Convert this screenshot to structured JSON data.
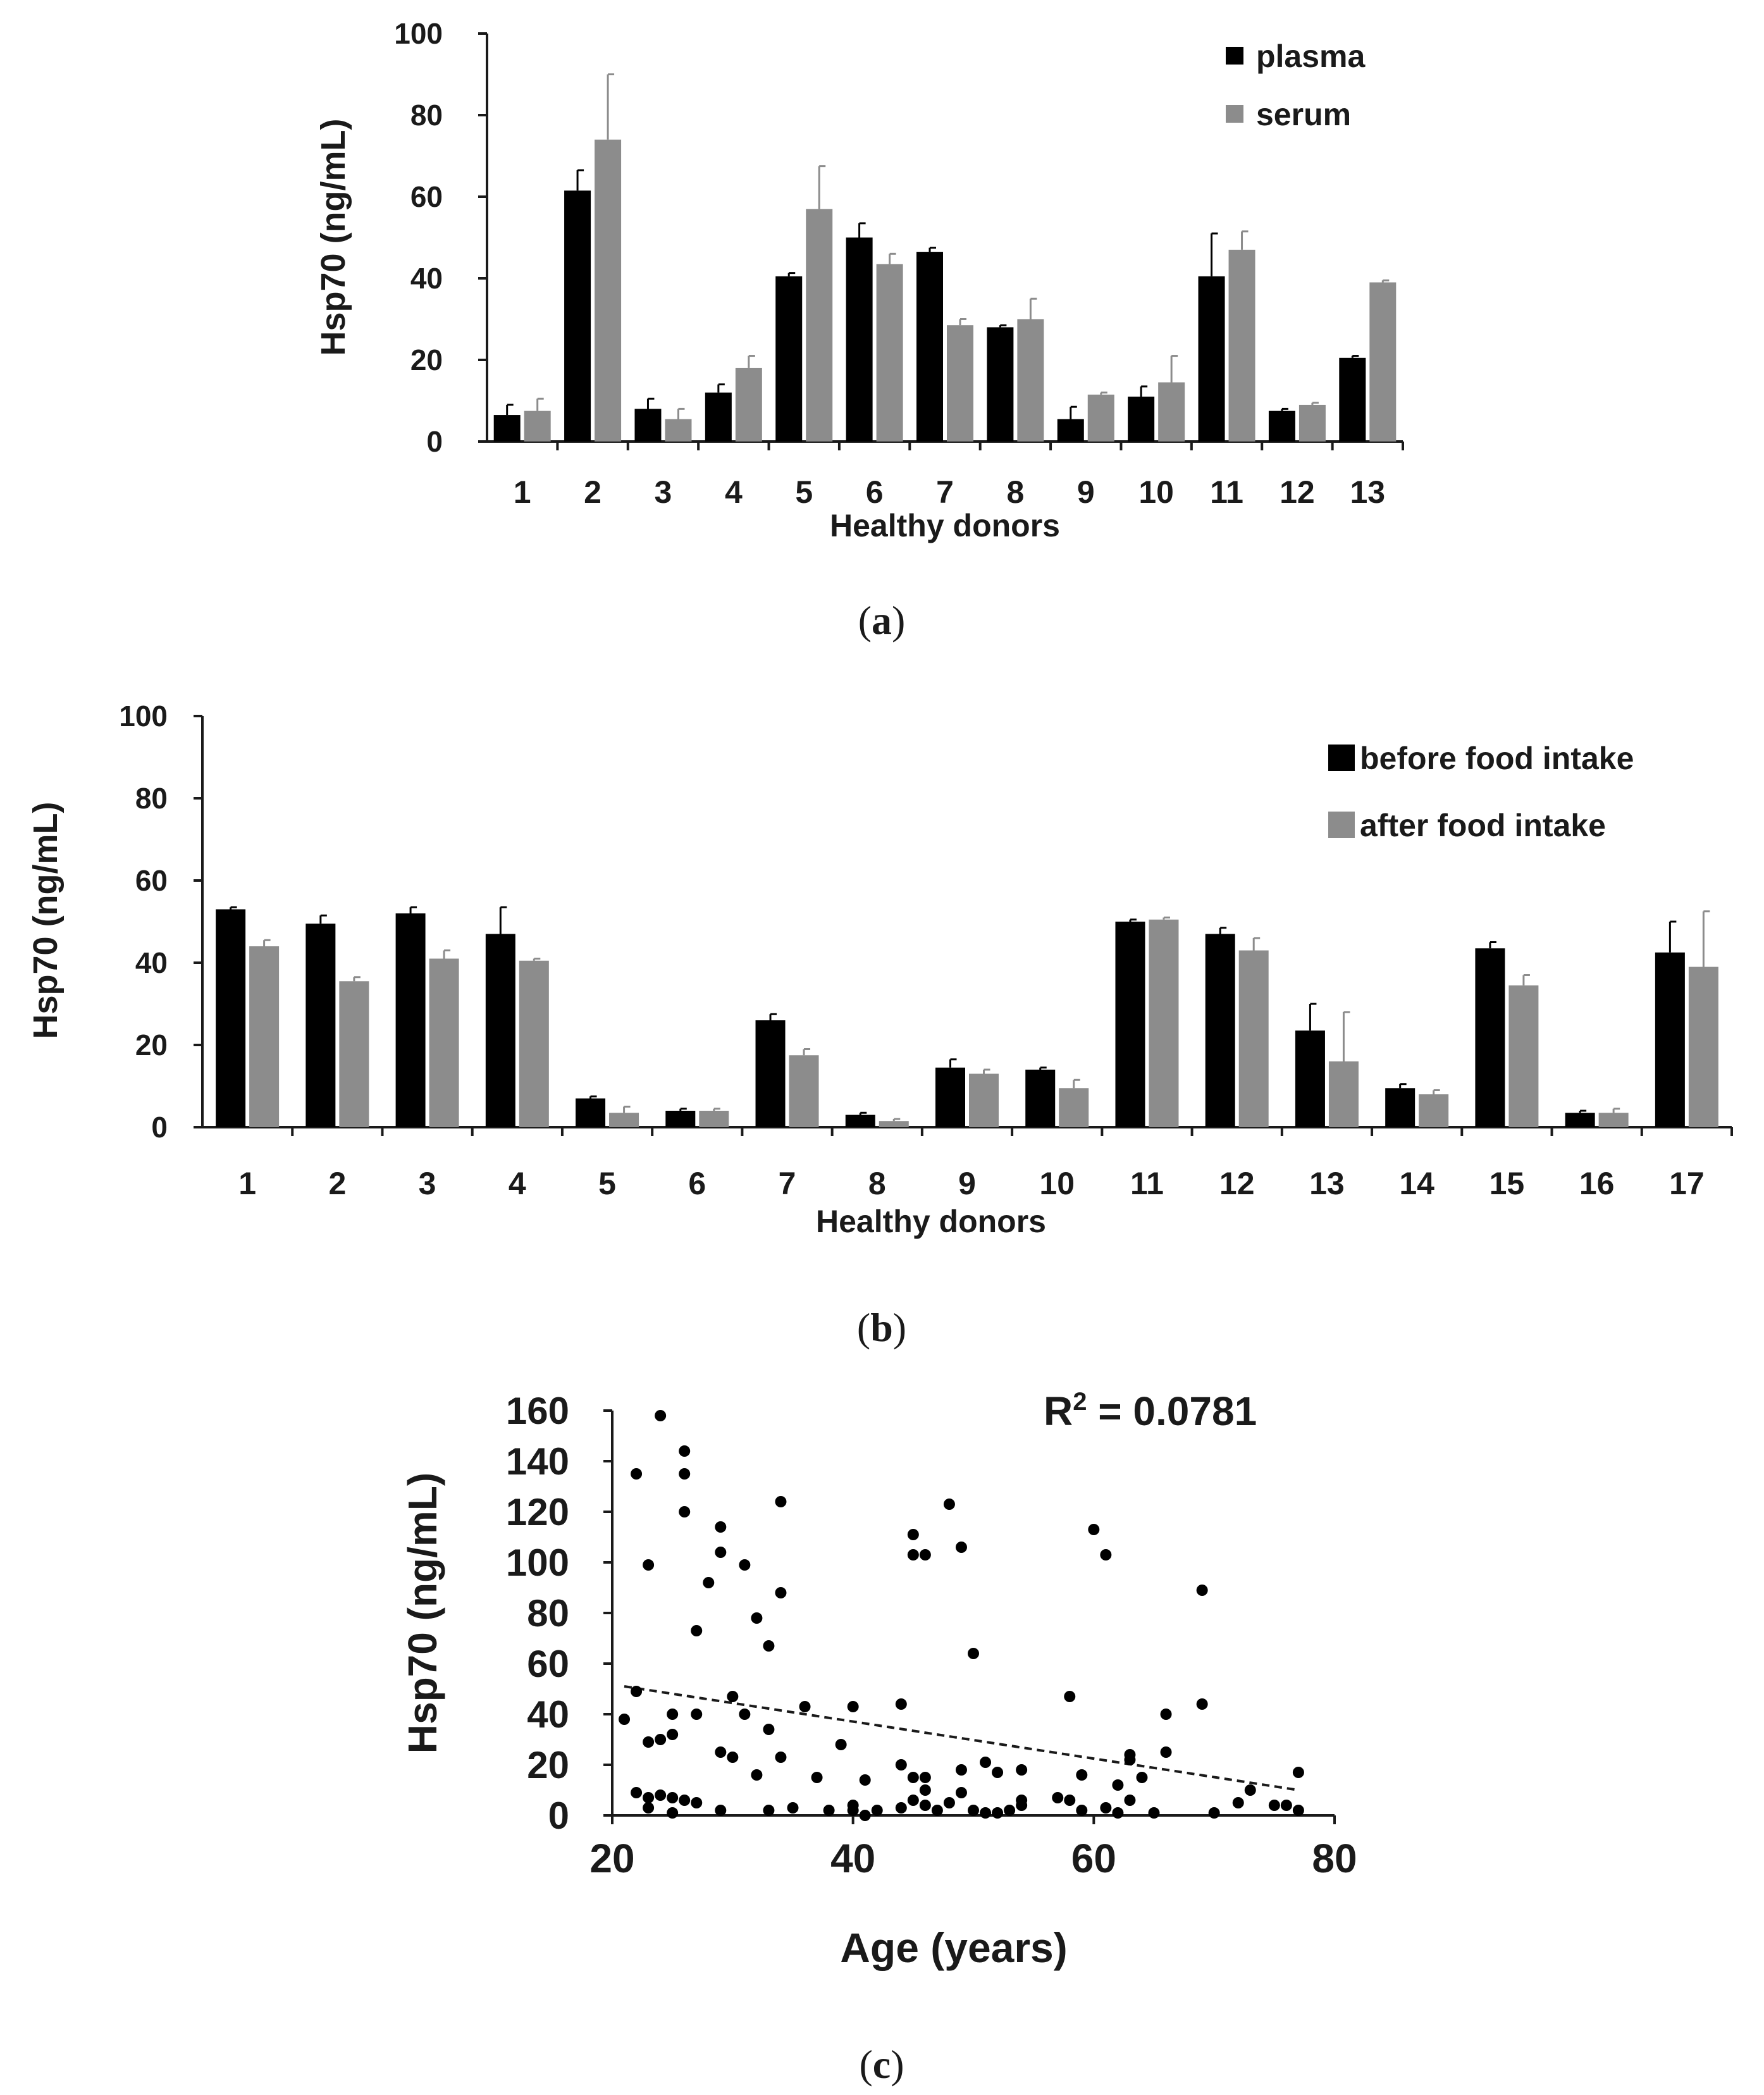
{
  "colors": {
    "black_bar": "#000000",
    "gray_bar": "#8c8c8c",
    "axis": "#1a1a1a",
    "point": "#000000"
  },
  "chart_data": [
    {
      "type": "bar",
      "panel": "a",
      "caption_letter": "a",
      "ylabel": "Hsp70 (ng/mL)",
      "xlabel": "Healthy donors",
      "ylim": [
        0,
        100
      ],
      "yticks": [
        "0",
        "20",
        "40",
        "60",
        "80",
        "100"
      ],
      "legend_position": "top-right",
      "categories": [
        "1",
        "2",
        "3",
        "4",
        "5",
        "6",
        "7",
        "8",
        "9",
        "10",
        "11",
        "12",
        "13"
      ],
      "series": [
        {
          "name": "plasma",
          "values": [
            6.5,
            61.5,
            8,
            12,
            40.5,
            50,
            46.5,
            28,
            5.5,
            11,
            40.5,
            7.5,
            20.5
          ],
          "errors": [
            2.5,
            5,
            2.5,
            2,
            0.8,
            3.5,
            1,
            0.5,
            3,
            2.5,
            10.5,
            0.5,
            0.5
          ]
        },
        {
          "name": "serum",
          "values": [
            7.5,
            74,
            5.5,
            18,
            57,
            43.5,
            28.5,
            30,
            11.5,
            14.5,
            47,
            9,
            39
          ],
          "errors": [
            3,
            16,
            2.5,
            3,
            10.5,
            2.5,
            1.5,
            5,
            0.5,
            6.5,
            4.5,
            0.5,
            0.5
          ]
        }
      ]
    },
    {
      "type": "bar",
      "panel": "b",
      "caption_letter": "b",
      "ylabel": "Hsp70 (ng/mL)",
      "xlabel": "Healthy donors",
      "ylim": [
        0,
        100
      ],
      "yticks": [
        "0",
        "20",
        "40",
        "60",
        "80",
        "100"
      ],
      "legend_position": "top-right",
      "categories": [
        "1",
        "2",
        "3",
        "4",
        "5",
        "6",
        "7",
        "8",
        "9",
        "10",
        "11",
        "12",
        "13",
        "14",
        "15",
        "16",
        "17"
      ],
      "series": [
        {
          "name": "before food intake",
          "values": [
            53,
            49.5,
            52,
            47,
            7,
            4,
            26,
            3,
            14.5,
            14,
            50,
            47,
            23.5,
            9.5,
            43.5,
            3.5,
            42.5
          ],
          "errors": [
            0.5,
            2,
            1.5,
            6.5,
            0.5,
            0.5,
            1.5,
            0.5,
            2,
            0.5,
            0.5,
            1.5,
            6.5,
            1,
            1.5,
            0.5,
            7.5
          ]
        },
        {
          "name": "after food intake",
          "values": [
            44,
            35.5,
            41,
            40.5,
            3.5,
            4,
            17.5,
            1.5,
            13,
            9.5,
            50.5,
            43,
            16,
            8,
            34.5,
            3.5,
            39
          ],
          "errors": [
            1.5,
            1,
            2,
            0.5,
            1.5,
            0.5,
            1.5,
            0.5,
            1,
            2,
            0.5,
            3,
            12,
            1,
            2.5,
            1,
            13.5
          ]
        }
      ]
    },
    {
      "type": "scatter",
      "panel": "c",
      "caption_letter": "c",
      "ylabel": "Hsp70 (ng/mL)",
      "xlabel": "Age (years)",
      "xlim": [
        20,
        80
      ],
      "ylim": [
        0,
        160
      ],
      "xticks": [
        "20",
        "40",
        "60",
        "80"
      ],
      "yticks": [
        "0",
        "20",
        "40",
        "60",
        "80",
        "100",
        "120",
        "140",
        "160"
      ],
      "annotation": {
        "prefix": "R",
        "superscript": "2",
        "text": " = 0.0781"
      },
      "trendline": {
        "style": "dashed",
        "x": [
          21,
          77
        ],
        "y": [
          51,
          10
        ]
      },
      "points": [
        [
          21,
          38
        ],
        [
          22,
          135
        ],
        [
          22,
          49
        ],
        [
          22,
          9
        ],
        [
          23,
          99
        ],
        [
          23,
          29
        ],
        [
          23,
          7
        ],
        [
          23,
          3
        ],
        [
          24,
          158
        ],
        [
          24,
          30
        ],
        [
          24,
          8
        ],
        [
          25,
          40
        ],
        [
          25,
          32
        ],
        [
          25,
          7
        ],
        [
          25,
          1
        ],
        [
          26,
          144
        ],
        [
          26,
          135
        ],
        [
          26,
          120
        ],
        [
          26,
          6
        ],
        [
          27,
          73
        ],
        [
          27,
          40
        ],
        [
          27,
          5
        ],
        [
          28,
          92
        ],
        [
          29,
          114
        ],
        [
          29,
          104
        ],
        [
          29,
          25
        ],
        [
          29,
          2
        ],
        [
          30,
          47
        ],
        [
          30,
          23
        ],
        [
          31,
          99
        ],
        [
          31,
          40
        ],
        [
          32,
          78
        ],
        [
          32,
          16
        ],
        [
          33,
          67
        ],
        [
          33,
          34
        ],
        [
          33,
          2
        ],
        [
          34,
          124
        ],
        [
          34,
          88
        ],
        [
          34,
          23
        ],
        [
          35,
          3
        ],
        [
          36,
          43
        ],
        [
          37,
          15
        ],
        [
          38,
          2
        ],
        [
          39,
          28
        ],
        [
          40,
          43
        ],
        [
          40,
          4
        ],
        [
          40,
          2
        ],
        [
          41,
          14
        ],
        [
          41,
          0
        ],
        [
          42,
          2
        ],
        [
          44,
          44
        ],
        [
          44,
          20
        ],
        [
          44,
          3
        ],
        [
          45,
          111
        ],
        [
          45,
          103
        ],
        [
          45,
          15
        ],
        [
          45,
          6
        ],
        [
          46,
          103
        ],
        [
          46,
          15
        ],
        [
          46,
          10
        ],
        [
          46,
          4
        ],
        [
          47,
          2
        ],
        [
          48,
          123
        ],
        [
          48,
          5
        ],
        [
          49,
          106
        ],
        [
          49,
          18
        ],
        [
          49,
          9
        ],
        [
          50,
          64
        ],
        [
          50,
          2
        ],
        [
          51,
          21
        ],
        [
          51,
          1
        ],
        [
          52,
          1
        ],
        [
          52,
          17
        ],
        [
          53,
          2
        ],
        [
          54,
          18
        ],
        [
          54,
          4
        ],
        [
          54,
          6
        ],
        [
          57,
          7
        ],
        [
          58,
          47
        ],
        [
          58,
          6
        ],
        [
          59,
          16
        ],
        [
          59,
          2
        ],
        [
          60,
          113
        ],
        [
          61,
          103
        ],
        [
          61,
          3
        ],
        [
          62,
          12
        ],
        [
          62,
          1
        ],
        [
          63,
          24
        ],
        [
          63,
          22
        ],
        [
          63,
          6
        ],
        [
          64,
          15
        ],
        [
          65,
          1
        ],
        [
          66,
          40
        ],
        [
          66,
          25
        ],
        [
          69,
          89
        ],
        [
          69,
          44
        ],
        [
          70,
          1
        ],
        [
          72,
          5
        ],
        [
          73,
          10
        ],
        [
          75,
          4
        ],
        [
          76,
          4
        ],
        [
          77,
          17
        ],
        [
          77,
          2
        ]
      ]
    }
  ]
}
